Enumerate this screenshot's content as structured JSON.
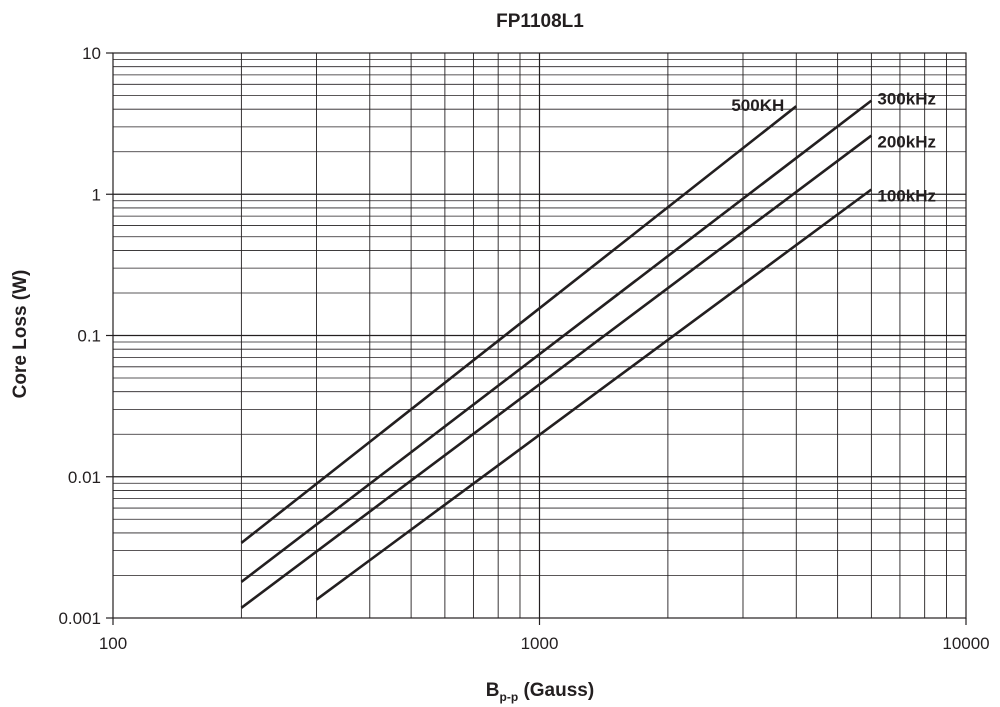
{
  "chart_data": {
    "type": "line",
    "title": "FP1108L1",
    "xlabel": {
      "main": "B",
      "sub": "p-p",
      "rest": " (Gauss)"
    },
    "ylabel": "Core Loss (W)",
    "xscale": "log",
    "yscale": "log",
    "xlim": [
      100,
      10000
    ],
    "ylim": [
      0.001,
      10
    ],
    "grid": true,
    "xticks": [
      "100",
      "1000",
      "10000"
    ],
    "yticks": [
      "0.001",
      "0.01",
      "0.1",
      "1",
      "10"
    ],
    "series": [
      {
        "name": "500KH",
        "x": [
          200,
          4000
        ],
        "y": [
          0.0034,
          4.2
        ]
      },
      {
        "name": "300kHz",
        "x": [
          200,
          6000
        ],
        "y": [
          0.0018,
          4.6
        ]
      },
      {
        "name": "200kHz",
        "x": [
          200,
          6000
        ],
        "y": [
          0.00118,
          2.6
        ]
      },
      {
        "name": "100kHz",
        "x": [
          300,
          6000
        ],
        "y": [
          0.00135,
          1.08
        ]
      }
    ],
    "colors": {
      "line": "#231f20",
      "grid": "#231f20"
    }
  }
}
